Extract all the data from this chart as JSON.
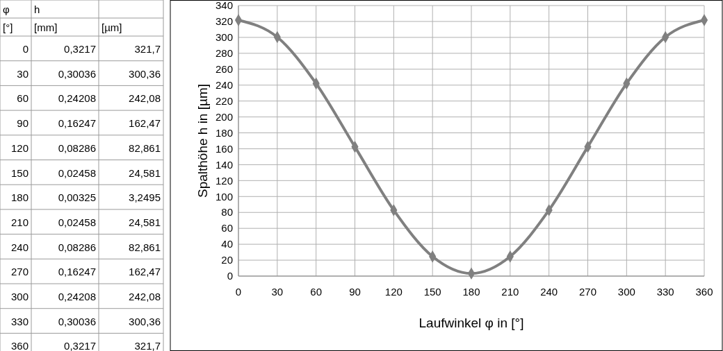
{
  "chart_data": {
    "type": "line",
    "xlabel": "Laufwinkel φ in [°]",
    "ylabel": "Spalthöhe h in [µm]",
    "x": [
      0,
      30,
      60,
      90,
      120,
      150,
      180,
      210,
      240,
      270,
      300,
      330,
      360
    ],
    "series": [
      {
        "color": "#808080",
        "values": [
          321.7,
          300.36,
          242.08,
          162.47,
          82.861,
          24.581,
          3.2495,
          24.581,
          82.861,
          162.47,
          242.08,
          300.36,
          321.7
        ]
      }
    ],
    "value_labels": [
      "321,7",
      "300,36",
      "242,08",
      "162,47",
      "82,861",
      "24,581",
      "3,2495",
      "24,581",
      "82,861",
      "162,47",
      "242,08",
      "300,36",
      "321,7"
    ],
    "annotations": [
      "φ",
      "h",
      "[°]",
      "[mm]",
      "[µm]",
      "0",
      "30",
      "60",
      "90",
      "120",
      "150",
      "180",
      "210",
      "240",
      "270",
      "300",
      "330",
      "360",
      "0,3217",
      "0,30036",
      "0,24208",
      "0,16247",
      "0,08286",
      "0,02458",
      "0,00325",
      "0,02458",
      "0,08286",
      "0,16247",
      "0,24208",
      "0,30036",
      "0,3217"
    ],
    "xlim": [
      0,
      360
    ],
    "xticks": [
      0,
      30,
      60,
      90,
      120,
      150,
      180,
      210,
      240,
      270,
      300,
      330,
      360
    ],
    "ylim": [
      0,
      340
    ],
    "yticks": [
      0,
      20,
      40,
      60,
      80,
      100,
      120,
      140,
      160,
      180,
      200,
      220,
      240,
      260,
      280,
      300,
      320,
      340
    ],
    "grid": true,
    "marker": "diamond",
    "line_style": "solid"
  }
}
